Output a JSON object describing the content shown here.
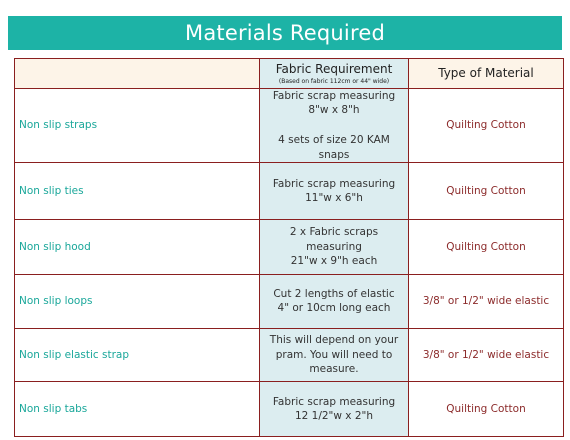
{
  "title": "Materials Required",
  "header": {
    "fabric_requirement": "Fabric Requirement",
    "fabric_note": "(Based on fabric 112cm or 44\" wide)",
    "type_of_material": "Type of Material"
  },
  "rows": [
    {
      "name": "Non slip straps",
      "req_lines": [
        "Fabric scrap measuring",
        "8\"w x 8\"h",
        "",
        "4 sets of size 20 KAM snaps"
      ],
      "type": "Quilting Cotton"
    },
    {
      "name": "Non slip ties",
      "req_lines": [
        "Fabric scrap measuring",
        "11\"w x 6\"h"
      ],
      "type": "Quilting Cotton"
    },
    {
      "name": "Non slip hood",
      "req_lines": [
        "2 x Fabric scraps measuring",
        "21\"w x 9\"h each"
      ],
      "type": "Quilting Cotton"
    },
    {
      "name": "Non slip loops",
      "req_lines": [
        "Cut 2 lengths of elastic",
        "4\" or 10cm long each"
      ],
      "type": "3/8\" or 1/2\" wide elastic"
    },
    {
      "name": "Non slip elastic strap",
      "req_lines": [
        "This will depend on your",
        "pram. You will need to",
        "measure."
      ],
      "type": "3/8\" or 1/2\" wide elastic"
    },
    {
      "name": "Non slip tabs",
      "req_lines": [
        "Fabric scrap measuring",
        "12 1/2\"w x 2\"h"
      ],
      "type": "Quilting Cotton"
    }
  ],
  "colors": {
    "banner": "#1db3a6",
    "name_text": "#1aa79a",
    "type_text": "#8c2b2b",
    "border": "#8a1f1f",
    "req_bg": "#dcedf0",
    "header_bg": "#fdf4e8"
  }
}
